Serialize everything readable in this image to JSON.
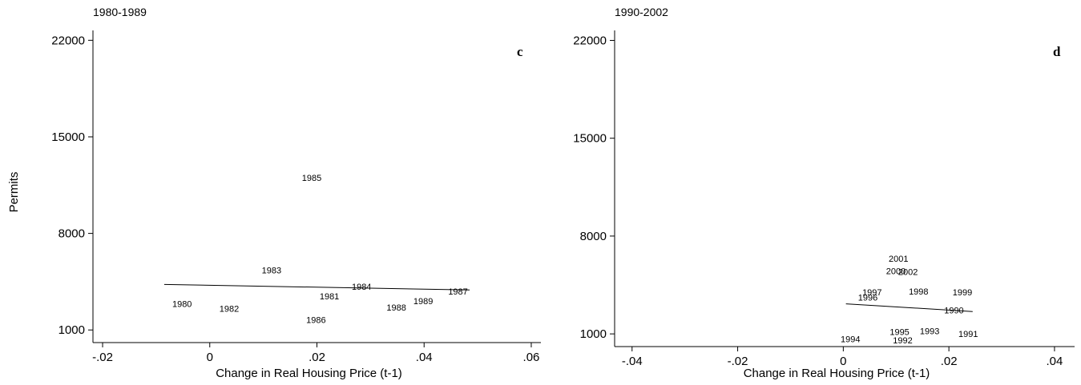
{
  "chart_data": [
    {
      "type": "scatter",
      "title": "1980-1989",
      "panel_letter": "c",
      "xlabel": "Change in Real Housing Price (t-1)",
      "ylabel": "Permits",
      "xlim": [
        -0.0215,
        0.0615
      ],
      "ylim": [
        550,
        22600
      ],
      "xticks": [
        -0.02,
        0,
        0.02,
        0.04,
        0.06
      ],
      "xtick_labels": [
        "-.02",
        "0",
        ".02",
        ".04",
        ".06"
      ],
      "yticks": [
        1000,
        8000,
        15000,
        22000
      ],
      "ytick_labels": [
        "1000",
        "8000",
        "15000",
        "22000"
      ],
      "points": [
        {
          "label": "1980",
          "x": -0.007,
          "y": 2900
        },
        {
          "label": "1981",
          "x": 0.0205,
          "y": 3450
        },
        {
          "label": "1982",
          "x": 0.0018,
          "y": 2550
        },
        {
          "label": "1983",
          "x": 0.0097,
          "y": 5350
        },
        {
          "label": "1984",
          "x": 0.0265,
          "y": 4150
        },
        {
          "label": "1985",
          "x": 0.0172,
          "y": 12050
        },
        {
          "label": "1986",
          "x": 0.018,
          "y": 1750
        },
        {
          "label": "1987",
          "x": 0.0445,
          "y": 3800
        },
        {
          "label": "1988",
          "x": 0.033,
          "y": 2650
        },
        {
          "label": "1989",
          "x": 0.038,
          "y": 3100
        }
      ],
      "fit_line": {
        "x": [
          -0.0085,
          0.0485
        ],
        "y": [
          4300,
          3900
        ]
      }
    },
    {
      "type": "scatter",
      "title": "1990-2002",
      "panel_letter": "d",
      "xlabel": "Change in Real Housing Price (t-1)",
      "ylabel": "",
      "xlim": [
        -0.043,
        0.0435
      ],
      "ylim": [
        550,
        22600
      ],
      "xticks": [
        -0.04,
        -0.02,
        0,
        0.02,
        0.04
      ],
      "xtick_labels": [
        "-.04",
        "-.02",
        "0",
        ".02",
        ".04"
      ],
      "yticks": [
        1000,
        8000,
        15000,
        22000
      ],
      "ytick_labels": [
        "1000",
        "8000",
        "15000",
        "22000"
      ],
      "points": [
        {
          "label": "1990",
          "x": 0.0191,
          "y": 2700
        },
        {
          "label": "1991",
          "x": 0.0218,
          "y": 1000
        },
        {
          "label": "1992",
          "x": 0.0094,
          "y": 550
        },
        {
          "label": "1993",
          "x": 0.0145,
          "y": 1200
        },
        {
          "label": "1994",
          "x": -0.0005,
          "y": 650
        },
        {
          "label": "1995",
          "x": 0.0088,
          "y": 1150
        },
        {
          "label": "1996",
          "x": 0.0028,
          "y": 3600
        },
        {
          "label": "1997",
          "x": 0.0036,
          "y": 4000
        },
        {
          "label": "1998",
          "x": 0.0124,
          "y": 4050
        },
        {
          "label": "1999",
          "x": 0.0207,
          "y": 4000
        },
        {
          "label": "2000",
          "x": 0.0081,
          "y": 5500
        },
        {
          "label": "2001",
          "x": 0.0086,
          "y": 6400
        },
        {
          "label": "2002",
          "x": 0.0104,
          "y": 5450
        }
      ],
      "fit_line": {
        "x": [
          0.0005,
          0.0245
        ],
        "y": [
          3150,
          2600
        ]
      }
    }
  ]
}
